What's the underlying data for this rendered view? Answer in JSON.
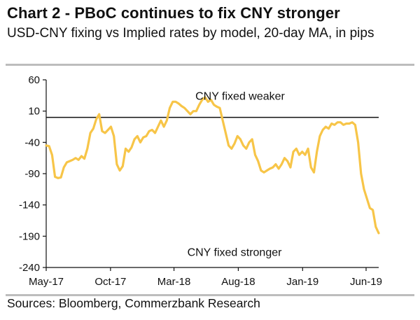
{
  "header": {
    "title": "Chart 2 - PBoC continues to fix CNY stronger",
    "subtitle": "USD-CNY fixing vs Implied rates by model, 20-day MA, in pips"
  },
  "footer": {
    "source": "Sources: Bloomberg, Commerzbank Research"
  },
  "colors": {
    "series": "#F7C548",
    "axis": "#111111",
    "rule": "#BDBDBD"
  },
  "chart_data": {
    "type": "line",
    "title": "Chart 2 - PBoC continues to fix CNY stronger",
    "subtitle": "USD-CNY fixing vs Implied rates by model, 20-day MA, in pips",
    "ylim": [
      -240,
      60
    ],
    "y_ticks": [
      60,
      10,
      -40,
      -90,
      -140,
      -190,
      -240
    ],
    "x_ticks": [
      "May-17",
      "Oct-17",
      "Mar-18",
      "Aug-18",
      "Jan-19",
      "Jun-19"
    ],
    "x_range": [
      "2017-05",
      "2019-07"
    ],
    "reference_line": 0,
    "grid": false,
    "legend": "none",
    "annotations": {
      "above": "CNY fixed weaker",
      "below": "CNY fixed stronger"
    },
    "series": [
      {
        "x": [
          "2017-05-01",
          "2017-05-08",
          "2017-05-15",
          "2017-05-22",
          "2017-05-29",
          "2017-06-05",
          "2017-06-12",
          "2017-06-19",
          "2017-06-26",
          "2017-07-03",
          "2017-07-10",
          "2017-07-17",
          "2017-07-24",
          "2017-07-31",
          "2017-08-07",
          "2017-08-14",
          "2017-08-21",
          "2017-08-28",
          "2017-09-04",
          "2017-09-11",
          "2017-09-18",
          "2017-09-25",
          "2017-10-02",
          "2017-10-09",
          "2017-10-16",
          "2017-10-23",
          "2017-10-30",
          "2017-11-06",
          "2017-11-13",
          "2017-11-20",
          "2017-11-27",
          "2017-12-04",
          "2017-12-11",
          "2017-12-18",
          "2017-12-25",
          "2018-01-01",
          "2018-01-08",
          "2018-01-15",
          "2018-01-22",
          "2018-01-29",
          "2018-02-05",
          "2018-02-12",
          "2018-02-19",
          "2018-02-26",
          "2018-03-05",
          "2018-03-12",
          "2018-03-19",
          "2018-03-26",
          "2018-04-02",
          "2018-04-09",
          "2018-04-16",
          "2018-04-23",
          "2018-04-30",
          "2018-05-07",
          "2018-05-14",
          "2018-05-21",
          "2018-05-28",
          "2018-06-04",
          "2018-06-11",
          "2018-06-18",
          "2018-06-25",
          "2018-07-02",
          "2018-07-09",
          "2018-07-16",
          "2018-07-23",
          "2018-07-30",
          "2018-08-06",
          "2018-08-13",
          "2018-08-20",
          "2018-08-27",
          "2018-09-03",
          "2018-09-10",
          "2018-09-17",
          "2018-09-24",
          "2018-10-01",
          "2018-10-08",
          "2018-10-15",
          "2018-10-22",
          "2018-10-29",
          "2018-11-05",
          "2018-11-12",
          "2018-11-19",
          "2018-11-26",
          "2018-12-03",
          "2018-12-10",
          "2018-12-17",
          "2018-12-24",
          "2018-12-31",
          "2019-01-07",
          "2019-01-14",
          "2019-01-21",
          "2019-01-28",
          "2019-02-04",
          "2019-02-11",
          "2019-02-18",
          "2019-02-25",
          "2019-03-04",
          "2019-03-11",
          "2019-03-18",
          "2019-03-25",
          "2019-04-01",
          "2019-04-08",
          "2019-04-15",
          "2019-04-22",
          "2019-04-29",
          "2019-05-06",
          "2019-05-13",
          "2019-05-20",
          "2019-05-27",
          "2019-06-03",
          "2019-06-10",
          "2019-06-17",
          "2019-06-24",
          "2019-07-01"
        ],
        "values": [
          -45,
          -46,
          -60,
          -95,
          -97,
          -96,
          -80,
          -72,
          -70,
          -68,
          -65,
          -68,
          -62,
          -66,
          -50,
          -25,
          -18,
          -3,
          5,
          -22,
          -25,
          -20,
          -15,
          -30,
          -75,
          -85,
          -78,
          -50,
          -55,
          -48,
          -35,
          -30,
          -40,
          -32,
          -30,
          -22,
          -20,
          -25,
          -15,
          -5,
          -15,
          -5,
          15,
          25,
          25,
          22,
          18,
          15,
          10,
          5,
          10,
          10,
          20,
          28,
          32,
          25,
          28,
          20,
          17,
          15,
          -5,
          -25,
          -45,
          -50,
          -42,
          -30,
          -35,
          -45,
          -50,
          -40,
          -35,
          -60,
          -70,
          -85,
          -88,
          -85,
          -82,
          -80,
          -75,
          -82,
          -75,
          -65,
          -70,
          -80,
          -55,
          -50,
          -60,
          -55,
          -60,
          -50,
          -80,
          -88,
          -55,
          -30,
          -20,
          -15,
          -18,
          -10,
          -12,
          -8,
          -8,
          -12,
          -10,
          -10,
          -8,
          -12,
          -40,
          -90,
          -115,
          -130,
          -145,
          -148,
          -175,
          -185
        ]
      }
    ]
  }
}
